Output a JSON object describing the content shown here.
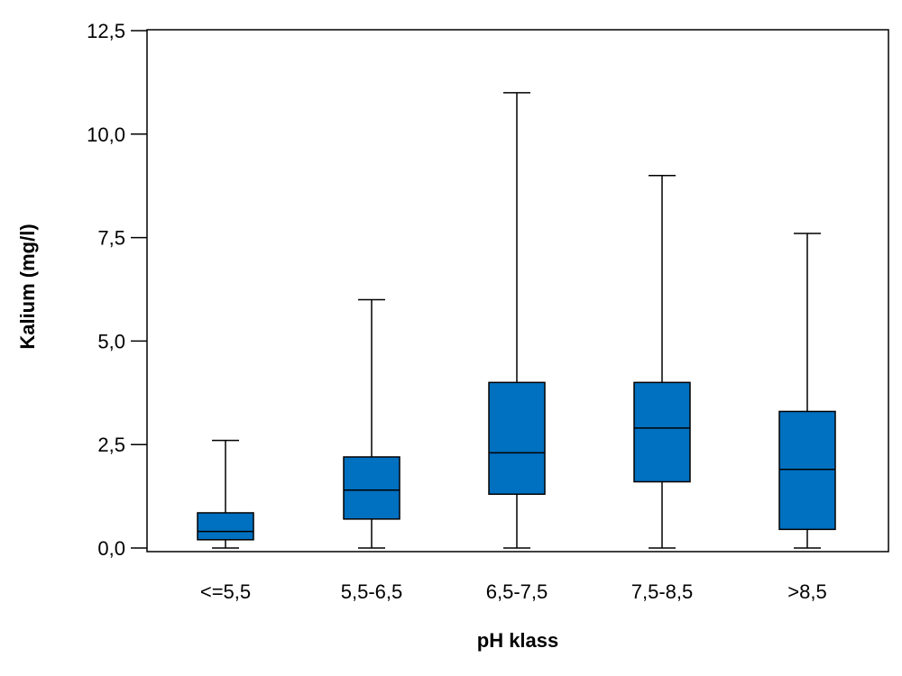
{
  "chart_data": {
    "type": "boxplot",
    "xlabel": "pH klass",
    "ylabel": "Kalium (mg/l)",
    "ylim": [
      0,
      12.5
    ],
    "yticks": [
      "0,0",
      "2,5",
      "5,0",
      "7,5",
      "10,0",
      "12,5"
    ],
    "ytick_values": [
      0,
      2.5,
      5.0,
      7.5,
      10.0,
      12.5
    ],
    "categories": [
      "<=5,5",
      "5,5-6,5",
      "6,5-7,5",
      "7,5-8,5",
      ">8,5"
    ],
    "boxes": [
      {
        "min": 0.0,
        "q1": 0.2,
        "median": 0.4,
        "q3": 0.85,
        "max": 2.6
      },
      {
        "min": 0.0,
        "q1": 0.7,
        "median": 1.4,
        "q3": 2.2,
        "max": 6.0
      },
      {
        "min": 0.0,
        "q1": 1.3,
        "median": 2.3,
        "q3": 4.0,
        "max": 11.0
      },
      {
        "min": 0.0,
        "q1": 1.6,
        "median": 2.9,
        "q3": 4.0,
        "max": 9.0
      },
      {
        "min": 0.0,
        "q1": 0.45,
        "median": 1.9,
        "q3": 3.3,
        "max": 7.6
      }
    ],
    "box_color": "#0070c0",
    "grid": false
  }
}
